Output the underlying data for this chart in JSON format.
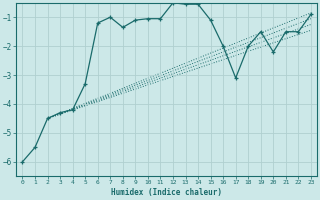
{
  "xlabel": "Humidex (Indice chaleur)",
  "background_color": "#cce8e8",
  "grid_color": "#b0d0d0",
  "line_color": "#1a6b6b",
  "xlim": [
    -0.5,
    23.5
  ],
  "ylim": [
    -6.5,
    -0.5
  ],
  "yticks": [
    -6,
    -5,
    -4,
    -3,
    -2,
    -1
  ],
  "xticks": [
    0,
    1,
    2,
    3,
    4,
    5,
    6,
    7,
    8,
    9,
    10,
    11,
    12,
    13,
    14,
    15,
    16,
    17,
    18,
    19,
    20,
    21,
    22,
    23
  ],
  "main_line": {
    "x": [
      0,
      1,
      2,
      3,
      4,
      5,
      6,
      7,
      8,
      9,
      10,
      11,
      12,
      13,
      14,
      15,
      16,
      17,
      18,
      19,
      20,
      21,
      22,
      23
    ],
    "y": [
      -6.0,
      -5.5,
      -4.5,
      -4.3,
      -4.2,
      -3.3,
      -1.2,
      -1.0,
      -1.35,
      -1.1,
      -1.05,
      -1.05,
      -0.5,
      -0.55,
      -0.55,
      -1.1,
      -2.0,
      -3.1,
      -2.0,
      -1.5,
      -2.2,
      -1.5,
      -1.5,
      -0.9
    ]
  },
  "trend_lines": [
    {
      "x": [
        2,
        23
      ],
      "y": [
        -4.5,
        -0.85
      ]
    },
    {
      "x": [
        2,
        23
      ],
      "y": [
        -4.5,
        -1.05
      ]
    },
    {
      "x": [
        2,
        23
      ],
      "y": [
        -4.5,
        -1.25
      ]
    },
    {
      "x": [
        2,
        23
      ],
      "y": [
        -4.5,
        -1.45
      ]
    }
  ]
}
